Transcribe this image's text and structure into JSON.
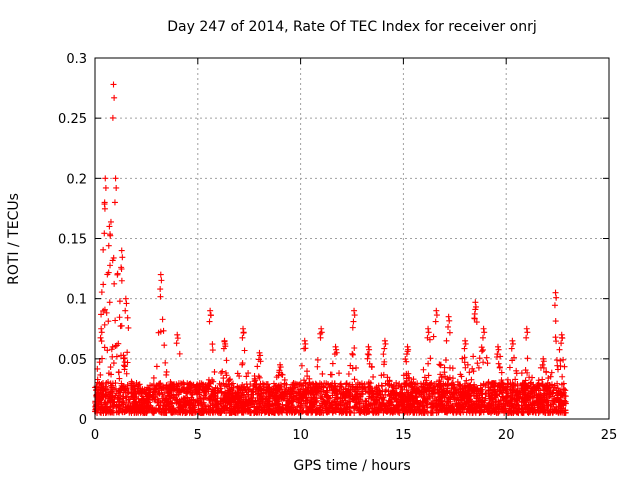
{
  "chart_data": {
    "type": "scatter",
    "title": "Day 247 of 2014, Rate Of TEC Index for receiver onrj",
    "xlabel": "GPS time / hours",
    "ylabel": "ROTI / TECUs",
    "xlim": [
      0,
      25
    ],
    "ylim": [
      0,
      0.3
    ],
    "xticks": [
      0,
      5,
      10,
      15,
      20,
      25
    ],
    "xtick_labels": [
      "0",
      "5",
      "10",
      "15",
      "20",
      "25"
    ],
    "yticks": [
      0,
      0.05,
      0.1,
      0.15,
      0.2,
      0.25,
      0.3
    ],
    "ytick_labels": [
      "0",
      "0.05",
      "0.1",
      "0.15",
      "0.2",
      "0.25",
      "0.3"
    ],
    "grid": true,
    "marker": "+",
    "color": "#ff0000",
    "series": [
      {
        "name": "ROTI",
        "x_range": [
          0,
          22.9
        ],
        "baseline_band": [
          0.005,
          0.03
        ],
        "peaks": [
          {
            "x": 0.3,
            "y": 0.075
          },
          {
            "x": 0.5,
            "y": 0.2
          },
          {
            "x": 0.7,
            "y": 0.16
          },
          {
            "x": 0.9,
            "y": 0.278
          },
          {
            "x": 1.0,
            "y": 0.2
          },
          {
            "x": 1.3,
            "y": 0.14
          },
          {
            "x": 1.5,
            "y": 0.1
          },
          {
            "x": 3.2,
            "y": 0.12
          },
          {
            "x": 4.0,
            "y": 0.07
          },
          {
            "x": 5.6,
            "y": 0.09
          },
          {
            "x": 6.3,
            "y": 0.065
          },
          {
            "x": 7.2,
            "y": 0.075
          },
          {
            "x": 8.0,
            "y": 0.055
          },
          {
            "x": 9.0,
            "y": 0.045
          },
          {
            "x": 10.2,
            "y": 0.065
          },
          {
            "x": 11.0,
            "y": 0.075
          },
          {
            "x": 11.7,
            "y": 0.06
          },
          {
            "x": 12.6,
            "y": 0.09
          },
          {
            "x": 13.3,
            "y": 0.06
          },
          {
            "x": 14.1,
            "y": 0.065
          },
          {
            "x": 15.2,
            "y": 0.06
          },
          {
            "x": 16.2,
            "y": 0.075
          },
          {
            "x": 16.6,
            "y": 0.09
          },
          {
            "x": 17.2,
            "y": 0.085
          },
          {
            "x": 18.0,
            "y": 0.065
          },
          {
            "x": 18.5,
            "y": 0.097
          },
          {
            "x": 18.9,
            "y": 0.075
          },
          {
            "x": 19.6,
            "y": 0.06
          },
          {
            "x": 20.3,
            "y": 0.065
          },
          {
            "x": 21.0,
            "y": 0.075
          },
          {
            "x": 21.8,
            "y": 0.05
          },
          {
            "x": 22.4,
            "y": 0.105
          },
          {
            "x": 22.7,
            "y": 0.07
          }
        ]
      }
    ]
  }
}
